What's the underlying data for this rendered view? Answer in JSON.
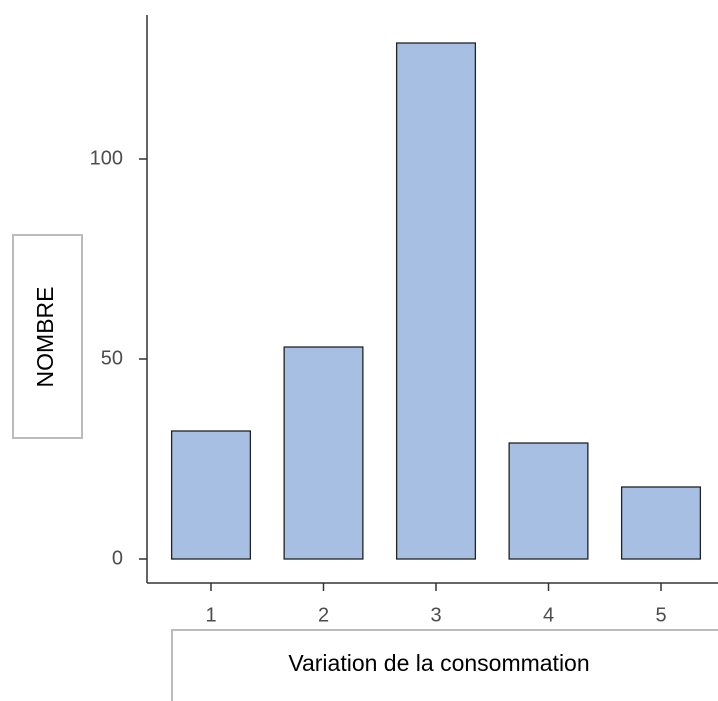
{
  "chart_data": {
    "type": "bar",
    "x_label": "Variation de la consommation",
    "y_label": "NOMBRE",
    "categories": [
      "1",
      "2",
      "3",
      "4",
      "5"
    ],
    "values": [
      32,
      53,
      129,
      29,
      18
    ],
    "color": "#a6bfe3",
    "ylim": [
      -6,
      136
    ],
    "yticks": [
      0,
      50,
      100
    ],
    "grid": false
  }
}
